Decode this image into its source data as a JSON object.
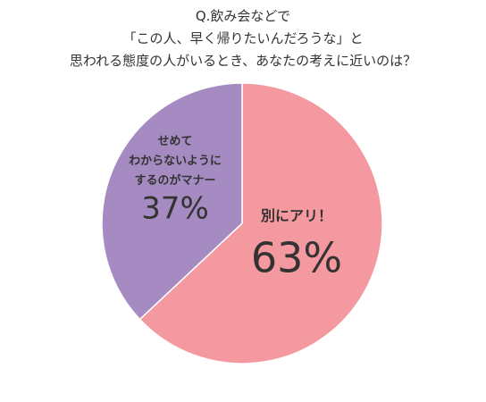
{
  "chart_data": {
    "type": "pie",
    "title": "Q.飲み会などで\n「この人、早く帰りたいんだろうな」と\n思われる態度の人がいるとき、あなたの考えに近いのは？",
    "categories": [
      "別にアリ！",
      "せめて\nわからないように\nするのがマナー"
    ],
    "values": [
      63,
      37
    ],
    "value_labels": [
      "63%",
      "37%"
    ],
    "colors": [
      "#f4999f",
      "#a68bc2"
    ]
  }
}
